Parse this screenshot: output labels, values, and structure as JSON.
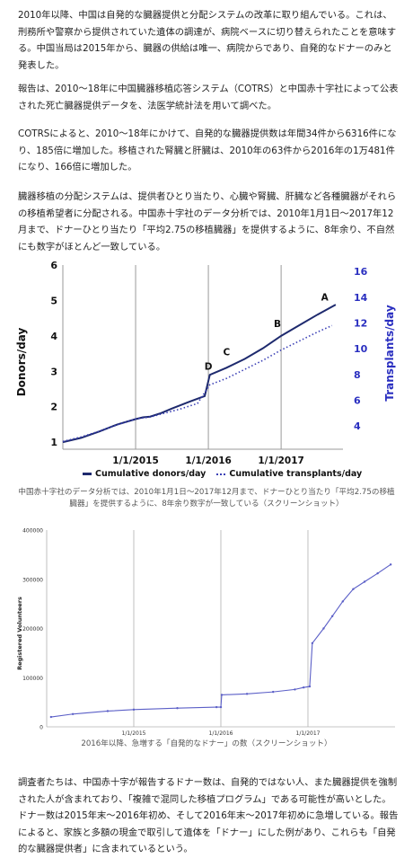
{
  "article": {
    "paragraph1": "2010年以降、中国は自発的な臓器提供と分配システムの改革に取り組んでいる。これは、刑務所や警察から提供されていた遺体の調達が、病院ベースに切り替えられたことを意味する。中国当局は2015年から、臓器の供給は唯一、病院からであり、自発的なドナーのみと発表した。",
    "paragraph2": "報告は、2010〜18年に中国臓器移植応答システム（COTRS）と中国赤十字社によって公表された死亡臓器提供データを、法医学統計法を用いて調べた。",
    "paragraph3": "COTRSによると、2010〜18年にかけて、自発的な臓器提供数は年間34件から6316件になり、185倍に増加した。移植された腎臓と肝臓は、2010年の63件から2016年の1万481件になり、166倍に増加した。",
    "paragraph4": "臓器移植の分配システムは、提供者ひとり当たり、心臓や腎臓、肝臓など各種臓器がそれらの移植希望者に分配される。中国赤十字社のデータ分析では、2010年1月1日〜2017年12月まで、ドナーひとり当たり「平均2.75の移植臓器」を提供するように、8年余り、不自然にも数字がほとんど一致している。",
    "caption1": "中国赤十字社のデータ分析では、2010年1月1日〜2017年12月まで、ドナーひとり当たり「平均2.75の移植臓器」を提供するように、8年余り数字が一致している（スクリーンショット）",
    "caption2": "2016年以降、急増する「自発的なドナー」の数（スクリーンショット）",
    "paragraph5": "調査者たちは、中国赤十字が報告するドナー数は、自発的ではない人、また臓器提供を強制された人が含まれており、「複雑で混同した移植プログラム」である可能性が高いとした。ドナー数は2015年末〜2016年初め、そして2016年末〜2017年初めに急増している。報告によると、家族と多額の現金で取引して遺体を「ドナー」にした例があり、これらも「自発的な臓器提供者」に含まれているという。"
  },
  "colors": {
    "donors_line": "#1e2a6e",
    "transplants_line": "#3a3fb5",
    "right_axis_text": "#2a2fc0",
    "volunteers_line": "#5b5fc7"
  },
  "chart_data": [
    {
      "type": "line",
      "ylabel": "Donors/day",
      "ylabel_right": "Transplants/day",
      "ylim": [
        0.8,
        6
      ],
      "ylim_right": [
        2.2,
        16.5
      ],
      "yticks": [
        "1",
        "2",
        "3",
        "4",
        "5",
        "6"
      ],
      "yticks_right": [
        "4",
        "6",
        "8",
        "10",
        "12",
        "14",
        "16"
      ],
      "xticks": [
        "1/1/2015",
        "1/1/2016",
        "1/1/2017"
      ],
      "grid": "vertical",
      "annotations": [
        "A",
        "B",
        "C",
        "D"
      ],
      "legend": {
        "position": "bottom",
        "entries": [
          "Cumulative donors/day",
          "Cumulative transplants/day"
        ]
      },
      "series": [
        {
          "name": "Cumulative donors/day",
          "points": [
            [
              2014.0,
              1.0
            ],
            [
              2014.25,
              1.12
            ],
            [
              2014.5,
              1.3
            ],
            [
              2014.75,
              1.5
            ],
            [
              2015.0,
              1.65
            ],
            [
              2015.1,
              1.7
            ],
            [
              2015.2,
              1.72
            ],
            [
              2015.35,
              1.82
            ],
            [
              2015.5,
              1.95
            ],
            [
              2015.75,
              2.15
            ],
            [
              2015.95,
              2.3
            ],
            [
              2016.02,
              2.9
            ],
            [
              2016.25,
              3.1
            ],
            [
              2016.5,
              3.35
            ],
            [
              2016.75,
              3.65
            ],
            [
              2017.0,
              4.0
            ],
            [
              2017.25,
              4.3
            ],
            [
              2017.5,
              4.6
            ],
            [
              2017.75,
              4.88
            ]
          ]
        },
        {
          "name": "Cumulative transplants/day",
          "points": [
            [
              2014.0,
              2.8
            ],
            [
              2014.25,
              3.15
            ],
            [
              2014.5,
              3.6
            ],
            [
              2014.75,
              4.1
            ],
            [
              2015.0,
              4.55
            ],
            [
              2015.2,
              4.7
            ],
            [
              2015.4,
              5.0
            ],
            [
              2015.6,
              5.3
            ],
            [
              2015.85,
              5.75
            ],
            [
              2016.02,
              7.2
            ],
            [
              2016.25,
              7.7
            ],
            [
              2016.5,
              8.4
            ],
            [
              2016.75,
              9.1
            ],
            [
              2017.0,
              9.9
            ],
            [
              2017.25,
              10.6
            ],
            [
              2017.5,
              11.3
            ],
            [
              2017.7,
              11.8
            ]
          ]
        }
      ]
    },
    {
      "type": "line",
      "ylabel": "Registered Volunteers",
      "ylim": [
        0,
        400000
      ],
      "yticks": [
        "0",
        "100000",
        "200000",
        "300000",
        "400000"
      ],
      "xticks": [
        "1/1/2015",
        "1/1/2016",
        "1/1/2017"
      ],
      "grid": "vertical",
      "series": [
        {
          "name": "Registered Volunteers",
          "points": [
            [
              2014.05,
              20000
            ],
            [
              2014.3,
              26000
            ],
            [
              2014.7,
              32000
            ],
            [
              2015.0,
              35000
            ],
            [
              2015.5,
              38000
            ],
            [
              2015.95,
              40000
            ],
            [
              2016.0,
              40000
            ],
            [
              2016.01,
              65000
            ],
            [
              2016.3,
              67000
            ],
            [
              2016.6,
              71000
            ],
            [
              2016.85,
              76000
            ],
            [
              2016.95,
              80000
            ],
            [
              2017.02,
              82000
            ],
            [
              2017.05,
              170000
            ],
            [
              2017.18,
              200000
            ],
            [
              2017.28,
              225000
            ],
            [
              2017.4,
              255000
            ],
            [
              2017.52,
              280000
            ],
            [
              2017.65,
              295000
            ],
            [
              2017.8,
              312000
            ],
            [
              2017.95,
              330000
            ]
          ]
        }
      ]
    }
  ]
}
